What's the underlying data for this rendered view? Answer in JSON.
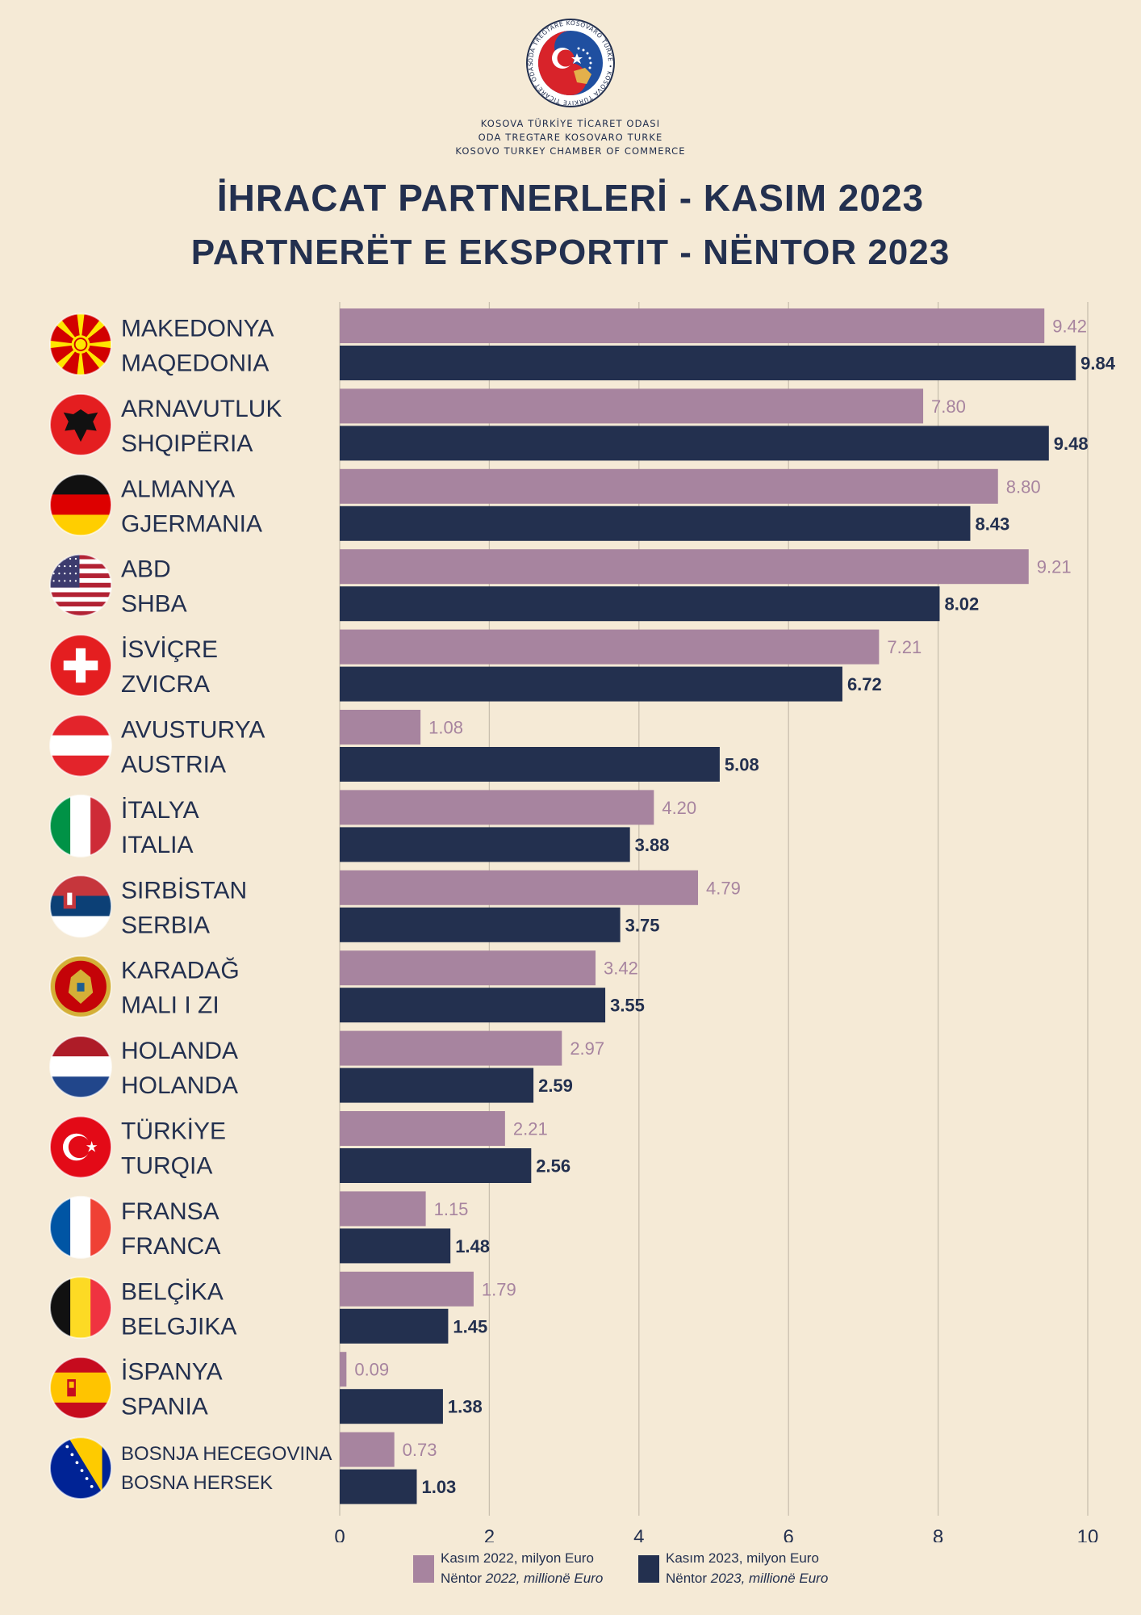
{
  "header": {
    "logo_text": "ODA TREGTARE KOSOVARO TURKE • KOSOVA TÜRKİYE TİCARET ODASI",
    "org_lines": [
      "KOSOVA TÜRKİYE TİCARET ODASI",
      "ODA TREGTARE KOSOVARO TURKE",
      "KOSOVO TURKEY CHAMBER OF COMMERCE"
    ],
    "title_tr": "İHRACAT PARTNERLERİ - KASIM 2023",
    "title_sq": "PARTNERËT E EKSPORTIT - NËNTOR 2023"
  },
  "colors": {
    "background": "#f5ead6",
    "series_2022": "#a7849f",
    "series_2023": "#23304f",
    "grid": "#c9bfae"
  },
  "chart_data": {
    "type": "bar",
    "orientation": "horizontal",
    "categories": [
      {
        "tr": "MAKEDONYA",
        "sq": "MAQEDONIA",
        "flag": "north-macedonia-flag-icon"
      },
      {
        "tr": "ARNAVUTLUK",
        "sq": "SHQIPËRIA",
        "flag": "albania-flag-icon"
      },
      {
        "tr": "ALMANYA",
        "sq": "GJERMANIA",
        "flag": "germany-flag-icon"
      },
      {
        "tr": "ABD",
        "sq": "SHBA",
        "flag": "usa-flag-icon"
      },
      {
        "tr": "İSVİÇRE",
        "sq": "ZVICRA",
        "flag": "switzerland-flag-icon"
      },
      {
        "tr": "AVUSTURYA",
        "sq": "AUSTRIA",
        "flag": "austria-flag-icon"
      },
      {
        "tr": "İTALYA",
        "sq": "ITALIA",
        "flag": "italy-flag-icon"
      },
      {
        "tr": "SIRBİSTAN",
        "sq": "SERBIA",
        "flag": "serbia-flag-icon"
      },
      {
        "tr": "KARADAĞ",
        "sq": "MALI I ZI",
        "flag": "montenegro-flag-icon"
      },
      {
        "tr": "HOLANDA",
        "sq": "HOLANDA",
        "flag": "netherlands-flag-icon"
      },
      {
        "tr": "TÜRKİYE",
        "sq": "TURQIA",
        "flag": "turkey-flag-icon"
      },
      {
        "tr": "FRANSA",
        "sq": "FRANCA",
        "flag": "france-flag-icon"
      },
      {
        "tr": "BELÇİKA",
        "sq": "BELGJIKA",
        "flag": "belgium-flag-icon"
      },
      {
        "tr": "İSPANYA",
        "sq": "SPANIA",
        "flag": "spain-flag-icon"
      },
      {
        "tr": "BOSNJA HECEGOVINA",
        "sq": "BOSNA HERSEK",
        "flag": "bosnia-flag-icon"
      }
    ],
    "series": [
      {
        "key": "2022",
        "values": [
          9.42,
          7.8,
          8.8,
          9.21,
          7.21,
          1.08,
          4.2,
          4.79,
          3.42,
          2.97,
          2.21,
          1.15,
          1.79,
          0.09,
          0.73
        ],
        "labels": [
          "9.42",
          "7.80",
          "8.80",
          "9.21",
          "7.21",
          "1.08",
          "4.20",
          "4.79",
          "3.42",
          "2.97",
          "2.21",
          "1.15",
          "1.79",
          "0.09",
          "0.73"
        ]
      },
      {
        "key": "2023",
        "values": [
          9.84,
          9.48,
          8.43,
          8.02,
          6.72,
          5.08,
          3.88,
          3.75,
          3.55,
          2.59,
          2.56,
          1.48,
          1.45,
          1.38,
          1.03
        ],
        "labels": [
          "9.84",
          "9.48",
          "8.43",
          "8.02",
          "6.72",
          "5.08",
          "3.88",
          "3.75",
          "3.55",
          "2.59",
          "2.56",
          "1.48",
          "1.45",
          "1.38",
          "1.03"
        ]
      }
    ],
    "xlim": [
      0,
      10
    ],
    "xticks": [
      0,
      2,
      4,
      6,
      8,
      10
    ],
    "grid": true,
    "legend_position": "bottom"
  },
  "legend": {
    "s2022_line1": "Kasım 2022, milyon Euro",
    "s2022_line2_prefix": "Nëntor ",
    "s2022_line2_italic": "2022, millionë Euro",
    "s2023_line1": "Kasım 2023, milyon Euro",
    "s2023_line2_prefix": "Nëntor ",
    "s2023_line2_italic": "2023, millionë Euro"
  }
}
